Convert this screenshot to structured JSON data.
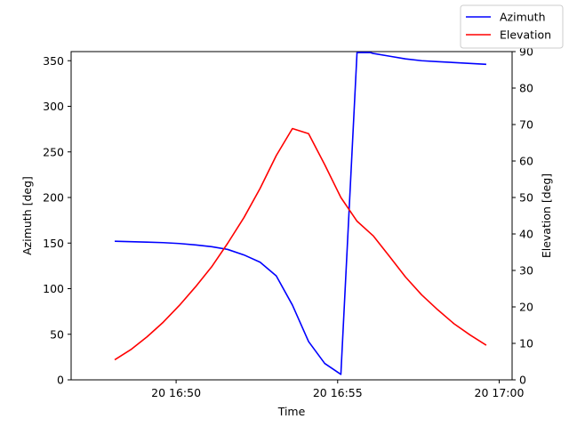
{
  "chart_data": {
    "type": "line",
    "xlabel": "Time",
    "ylabel_left": "Azimuth [deg]",
    "ylabel_right": "Elevation [deg]",
    "xlim": [
      -6.5,
      20.8
    ],
    "ylim_left": [
      0,
      360
    ],
    "ylim_right": [
      0,
      90
    ],
    "grid": false,
    "legend_position": "top-right",
    "x_ticks": [
      {
        "value": 0,
        "label": "20 16:50"
      },
      {
        "value": 10,
        "label": "20 16:55"
      },
      {
        "value": 20,
        "label": "20 17:00"
      }
    ],
    "y_left_ticks": [
      0,
      50,
      100,
      150,
      200,
      250,
      300,
      350
    ],
    "y_right_ticks": [
      0,
      10,
      20,
      30,
      40,
      50,
      60,
      70,
      80,
      90
    ],
    "x_minutes_after_1650": [
      -3.8,
      -2.8,
      -1.8,
      -0.8,
      0.2,
      1.2,
      2.2,
      3.2,
      4.2,
      5.2,
      6.2,
      7.2,
      8.2,
      9.2,
      10.2,
      11.2,
      12.2,
      13.2,
      14.2,
      15.2,
      16.2,
      17.2,
      18.2,
      19.2
    ],
    "series": [
      {
        "name": "Azimuth",
        "color": "#0000ff",
        "axis": "left",
        "x": [
          -3.8,
          -2.8,
          -1.8,
          -0.8,
          0.2,
          1.2,
          2.2,
          3.2,
          4.2,
          5.2,
          6.2,
          7.2,
          8.2,
          9.2,
          10.2,
          11.2,
          12.0,
          12.2,
          13.2,
          14.2,
          15.2,
          16.2,
          17.2,
          18.2,
          19.2
        ],
        "values": [
          152,
          151.5,
          151,
          150.5,
          149.5,
          148,
          146,
          143,
          137,
          129,
          114,
          82,
          42,
          18,
          6,
          359,
          359,
          358,
          355,
          352,
          350,
          349,
          348,
          347,
          346
        ]
      },
      {
        "name": "Elevation",
        "color": "#ff0000",
        "axis": "right",
        "x": [
          -3.8,
          -2.8,
          -1.8,
          -0.8,
          0.2,
          1.2,
          2.2,
          3.2,
          4.2,
          5.2,
          6.2,
          7.2,
          8.2,
          9.2,
          10.2,
          11.2,
          12.2,
          13.2,
          14.2,
          15.2,
          16.2,
          17.2,
          18.2,
          19.2
        ],
        "values": [
          5.5,
          8.3,
          11.8,
          15.8,
          20.4,
          25.5,
          31,
          37.5,
          44.5,
          52.5,
          61.5,
          68.9,
          67.5,
          59,
          50,
          43.5,
          39.5,
          33.9,
          28.2,
          23.3,
          19.2,
          15.4,
          12.3,
          9.5
        ]
      }
    ]
  }
}
